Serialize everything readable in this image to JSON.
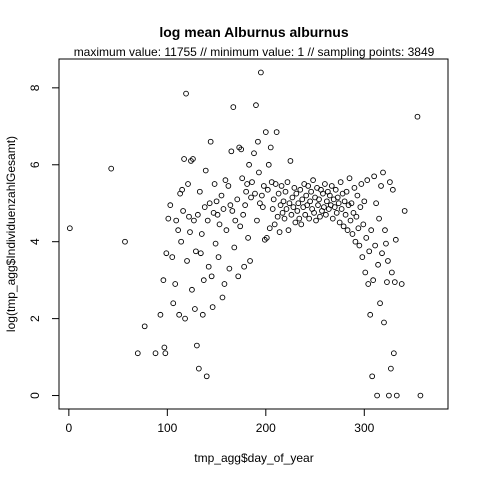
{
  "chart_data": {
    "type": "scatter",
    "title": "log mean Alburnus alburnus",
    "subtitle": "maximum value: 11755  //  minimum value: 1  // sampling points: 3849",
    "xlabel": "tmp_agg$day_of_year",
    "ylabel": "log(tmp_agg$IndividuenzahlGesamt)",
    "xlim": [
      -10,
      385
    ],
    "ylim": [
      -0.35,
      8.75
    ],
    "xticks": [
      0,
      100,
      200,
      300
    ],
    "yticks": [
      0,
      2,
      4,
      6,
      8
    ],
    "grid": false,
    "marker": "open-circle",
    "points": [
      [
        1,
        4.35
      ],
      [
        43,
        5.9
      ],
      [
        57,
        4.0
      ],
      [
        70,
        1.1
      ],
      [
        77,
        1.8
      ],
      [
        88,
        1.1
      ],
      [
        93,
        2.1
      ],
      [
        96,
        3.0
      ],
      [
        97,
        1.25
      ],
      [
        98,
        1.1
      ],
      [
        99,
        3.7
      ],
      [
        101,
        4.6
      ],
      [
        103,
        4.95
      ],
      [
        105,
        3.6
      ],
      [
        106,
        2.4
      ],
      [
        108,
        2.9
      ],
      [
        109,
        4.55
      ],
      [
        111,
        4.3
      ],
      [
        112,
        2.1
      ],
      [
        113,
        5.25
      ],
      [
        114,
        4.0
      ],
      [
        115,
        5.35
      ],
      [
        116,
        4.8
      ],
      [
        117,
        6.15
      ],
      [
        118,
        2.0
      ],
      [
        119,
        7.85
      ],
      [
        120,
        3.5
      ],
      [
        121,
        5.5
      ],
      [
        122,
        4.65
      ],
      [
        123,
        4.25
      ],
      [
        124,
        6.1
      ],
      [
        125,
        2.75
      ],
      [
        126,
        6.15
      ],
      [
        127,
        4.55
      ],
      [
        128,
        2.25
      ],
      [
        129,
        3.75
      ],
      [
        130,
        1.3
      ],
      [
        131,
        4.7
      ],
      [
        132,
        0.7
      ],
      [
        133,
        5.3
      ],
      [
        134,
        3.7
      ],
      [
        135,
        4.2
      ],
      [
        136,
        2.1
      ],
      [
        137,
        3.0
      ],
      [
        138,
        4.9
      ],
      [
        139,
        5.85
      ],
      [
        140,
        0.5
      ],
      [
        141,
        4.55
      ],
      [
        142,
        3.35
      ],
      [
        143,
        5.0
      ],
      [
        144,
        6.6
      ],
      [
        145,
        3.1
      ],
      [
        146,
        2.3
      ],
      [
        147,
        4.75
      ],
      [
        148,
        5.5
      ],
      [
        149,
        3.95
      ],
      [
        150,
        5.05
      ],
      [
        151,
        4.7
      ],
      [
        152,
        3.6
      ],
      [
        153,
        4.45
      ],
      [
        155,
        5.2
      ],
      [
        156,
        2.55
      ],
      [
        157,
        4.85
      ],
      [
        158,
        2.9
      ],
      [
        159,
        5.6
      ],
      [
        160,
        4.3
      ],
      [
        162,
        5.45
      ],
      [
        163,
        3.3
      ],
      [
        164,
        4.95
      ],
      [
        165,
        6.35
      ],
      [
        166,
        4.8
      ],
      [
        167,
        7.5
      ],
      [
        168,
        3.85
      ],
      [
        169,
        4.55
      ],
      [
        171,
        5.1
      ],
      [
        172,
        3.1
      ],
      [
        173,
        6.45
      ],
      [
        174,
        4.4
      ],
      [
        175,
        6.4
      ],
      [
        176,
        5.65
      ],
      [
        177,
        4.7
      ],
      [
        178,
        3.35
      ],
      [
        179,
        4.95
      ],
      [
        180,
        5.3
      ],
      [
        181,
        5.5
      ],
      [
        182,
        4.1
      ],
      [
        183,
        6.0
      ],
      [
        184,
        3.5
      ],
      [
        185,
        5.15
      ],
      [
        186,
        5.55
      ],
      [
        188,
        6.3
      ],
      [
        189,
        5.25
      ],
      [
        190,
        7.55
      ],
      [
        191,
        4.55
      ],
      [
        192,
        6.6
      ],
      [
        193,
        5.8
      ],
      [
        194,
        5.0
      ],
      [
        195,
        8.4
      ],
      [
        196,
        5.2
      ],
      [
        197,
        4.9
      ],
      [
        198,
        5.45
      ],
      [
        199,
        4.05
      ],
      [
        200,
        6.85
      ],
      [
        201,
        4.1
      ],
      [
        202,
        5.35
      ],
      [
        203,
        6.0
      ],
      [
        204,
        4.35
      ],
      [
        205,
        6.45
      ],
      [
        206,
        5.55
      ],
      [
        207,
        4.85
      ],
      [
        208,
        5.1
      ],
      [
        209,
        4.45
      ],
      [
        210,
        5.5
      ],
      [
        211,
        6.85
      ],
      [
        212,
        4.65
      ],
      [
        213,
        5.25
      ],
      [
        214,
        4.25
      ],
      [
        215,
        4.95
      ],
      [
        216,
        5.45
      ],
      [
        217,
        4.75
      ],
      [
        218,
        5.05
      ],
      [
        219,
        4.6
      ],
      [
        220,
        5.3
      ],
      [
        221,
        4.85
      ],
      [
        222,
        5.55
      ],
      [
        223,
        4.3
      ],
      [
        224,
        5.0
      ],
      [
        225,
        6.1
      ],
      [
        226,
        4.7
      ],
      [
        227,
        5.15
      ],
      [
        228,
        4.9
      ],
      [
        229,
        5.4
      ],
      [
        230,
        4.5
      ],
      [
        231,
        5.25
      ],
      [
        232,
        4.8
      ],
      [
        233,
        5.0
      ],
      [
        234,
        4.6
      ],
      [
        235,
        5.35
      ],
      [
        236,
        4.45
      ],
      [
        237,
        5.1
      ],
      [
        238,
        4.9
      ],
      [
        239,
        5.5
      ],
      [
        240,
        4.7
      ],
      [
        241,
        5.2
      ],
      [
        242,
        4.95
      ],
      [
        243,
        5.45
      ],
      [
        244,
        4.6
      ],
      [
        245,
        5.05
      ],
      [
        246,
        5.3
      ],
      [
        247,
        4.85
      ],
      [
        248,
        5.6
      ],
      [
        249,
        4.75
      ],
      [
        250,
        5.15
      ],
      [
        251,
        4.55
      ],
      [
        252,
        5.4
      ],
      [
        253,
        4.95
      ],
      [
        254,
        5.1
      ],
      [
        255,
        4.65
      ],
      [
        256,
        5.35
      ],
      [
        257,
        4.8
      ],
      [
        258,
        5.25
      ],
      [
        259,
        4.9
      ],
      [
        260,
        5.5
      ],
      [
        261,
        4.7
      ],
      [
        262,
        5.05
      ],
      [
        263,
        5.3
      ],
      [
        264,
        4.85
      ],
      [
        265,
        5.2
      ],
      [
        266,
        4.95
      ],
      [
        267,
        5.45
      ],
      [
        268,
        4.6
      ],
      [
        269,
        5.1
      ],
      [
        270,
        4.9
      ],
      [
        271,
        5.35
      ],
      [
        272,
        4.75
      ],
      [
        273,
        5.15
      ],
      [
        274,
        5.0
      ],
      [
        275,
        4.5
      ],
      [
        276,
        5.55
      ],
      [
        277,
        4.85
      ],
      [
        278,
        5.25
      ],
      [
        279,
        4.4
      ],
      [
        280,
        5.05
      ],
      [
        281,
        4.7
      ],
      [
        282,
        5.3
      ],
      [
        283,
        4.3
      ],
      [
        284,
        4.95
      ],
      [
        285,
        5.65
      ],
      [
        286,
        4.55
      ],
      [
        287,
        5.0
      ],
      [
        288,
        4.2
      ],
      [
        289,
        4.75
      ],
      [
        290,
        5.4
      ],
      [
        291,
        4.0
      ],
      [
        292,
        4.65
      ],
      [
        293,
        5.2
      ],
      [
        294,
        4.35
      ],
      [
        295,
        3.9
      ],
      [
        296,
        4.9
      ],
      [
        297,
        5.5
      ],
      [
        298,
        3.6
      ],
      [
        299,
        4.45
      ],
      [
        300,
        5.05
      ],
      [
        301,
        3.2
      ],
      [
        302,
        4.1
      ],
      [
        303,
        5.6
      ],
      [
        304,
        2.9
      ],
      [
        305,
        3.75
      ],
      [
        306,
        2.1
      ],
      [
        307,
        4.3
      ],
      [
        308,
        0.5
      ],
      [
        309,
        3.0
      ],
      [
        310,
        5.7
      ],
      [
        311,
        3.9
      ],
      [
        312,
        5.0
      ],
      [
        313,
        0.0
      ],
      [
        314,
        3.4
      ],
      [
        315,
        4.6
      ],
      [
        316,
        2.4
      ],
      [
        317,
        5.45
      ],
      [
        318,
        3.7
      ],
      [
        319,
        5.8
      ],
      [
        320,
        1.9
      ],
      [
        321,
        4.3
      ],
      [
        322,
        3.95
      ],
      [
        323,
        2.95
      ],
      [
        324,
        3.5
      ],
      [
        325,
        0.0
      ],
      [
        326,
        5.55
      ],
      [
        327,
        0.7
      ],
      [
        328,
        3.2
      ],
      [
        329,
        5.35
      ],
      [
        330,
        1.1
      ],
      [
        331,
        2.95
      ],
      [
        332,
        4.05
      ],
      [
        333,
        0.0
      ],
      [
        338,
        2.9
      ],
      [
        341,
        4.8
      ],
      [
        354,
        7.25
      ],
      [
        357,
        0.0
      ]
    ]
  }
}
